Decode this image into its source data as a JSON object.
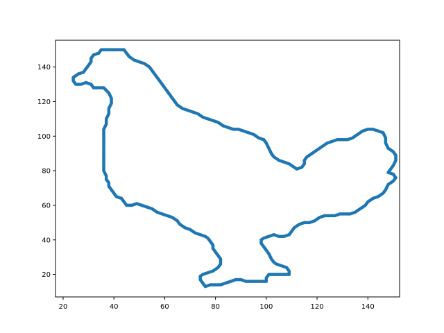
{
  "chart_data": {
    "type": "scatter",
    "title": "",
    "xlabel": "",
    "ylabel": "",
    "xlim": [
      17,
      152.5
    ],
    "ylim": [
      7,
      155.5
    ],
    "xticks": [
      20,
      40,
      60,
      80,
      100,
      120,
      140
    ],
    "yticks": [
      20,
      40,
      60,
      80,
      100,
      120,
      140
    ],
    "grid": false,
    "legend": "none",
    "marker_color": "#1f77b4",
    "series": [
      {
        "points": [
          [
            36,
            150
          ],
          [
            38,
            150
          ],
          [
            40,
            150
          ],
          [
            42,
            150
          ],
          [
            44,
            150
          ],
          [
            45,
            148
          ],
          [
            46,
            146
          ],
          [
            47,
            145
          ],
          [
            48,
            144
          ],
          [
            50,
            143
          ],
          [
            52,
            142
          ],
          [
            54,
            140
          ],
          [
            55,
            138
          ],
          [
            56,
            136
          ],
          [
            57,
            134
          ],
          [
            58,
            132
          ],
          [
            59,
            130
          ],
          [
            60,
            128
          ],
          [
            61,
            126
          ],
          [
            62,
            124
          ],
          [
            63,
            122
          ],
          [
            64,
            120
          ],
          [
            65,
            118
          ],
          [
            67,
            116
          ],
          [
            69,
            115
          ],
          [
            71,
            114
          ],
          [
            73,
            113
          ],
          [
            75,
            111
          ],
          [
            77,
            110
          ],
          [
            79,
            109
          ],
          [
            81,
            108
          ],
          [
            83,
            106
          ],
          [
            85,
            105
          ],
          [
            87,
            104
          ],
          [
            89,
            104
          ],
          [
            91,
            103
          ],
          [
            93,
            102
          ],
          [
            95,
            101
          ],
          [
            97,
            99
          ],
          [
            99,
            98
          ],
          [
            100,
            96
          ],
          [
            101,
            93
          ],
          [
            102,
            90
          ],
          [
            103,
            88
          ],
          [
            105,
            86
          ],
          [
            107,
            85
          ],
          [
            109,
            84
          ],
          [
            110,
            83
          ],
          [
            112,
            81
          ],
          [
            114,
            82
          ],
          [
            115,
            84
          ],
          [
            115,
            86
          ],
          [
            116,
            88
          ],
          [
            118,
            90
          ],
          [
            120,
            92
          ],
          [
            122,
            94
          ],
          [
            124,
            96
          ],
          [
            126,
            97
          ],
          [
            128,
            98
          ],
          [
            130,
            98
          ],
          [
            132,
            98
          ],
          [
            134,
            99
          ],
          [
            136,
            101
          ],
          [
            138,
            103
          ],
          [
            140,
            104
          ],
          [
            142,
            104
          ],
          [
            144,
            103
          ],
          [
            146,
            102
          ],
          [
            147,
            99
          ],
          [
            147,
            96
          ],
          [
            148,
            93
          ],
          [
            150,
            91
          ],
          [
            151,
            89
          ],
          [
            151,
            86
          ],
          [
            150,
            83
          ],
          [
            149,
            81
          ],
          [
            148,
            79
          ],
          [
            150,
            78
          ],
          [
            151,
            76
          ],
          [
            150,
            74
          ],
          [
            148,
            72
          ],
          [
            147,
            69
          ],
          [
            146,
            67
          ],
          [
            144,
            65
          ],
          [
            142,
            64
          ],
          [
            140,
            62
          ],
          [
            139,
            60
          ],
          [
            137,
            58
          ],
          [
            135,
            56
          ],
          [
            133,
            55
          ],
          [
            131,
            55
          ],
          [
            129,
            55
          ],
          [
            127,
            54
          ],
          [
            125,
            54
          ],
          [
            123,
            54
          ],
          [
            121,
            53
          ],
          [
            119,
            51
          ],
          [
            117,
            50
          ],
          [
            115,
            50
          ],
          [
            113,
            49
          ],
          [
            111,
            47
          ],
          [
            110,
            45
          ],
          [
            109,
            43
          ],
          [
            107,
            42
          ],
          [
            105,
            42
          ],
          [
            103,
            43
          ],
          [
            101,
            42
          ],
          [
            99,
            41
          ],
          [
            98,
            40
          ],
          [
            98,
            38
          ],
          [
            99,
            36
          ],
          [
            100,
            34
          ],
          [
            101,
            32
          ],
          [
            102,
            29
          ],
          [
            103,
            27
          ],
          [
            104,
            26
          ],
          [
            106,
            25
          ],
          [
            108,
            24
          ],
          [
            109,
            22
          ],
          [
            109,
            20
          ],
          [
            107,
            20
          ],
          [
            105,
            20
          ],
          [
            103,
            20
          ],
          [
            101,
            20
          ],
          [
            100,
            18
          ],
          [
            100,
            16
          ],
          [
            98,
            16
          ],
          [
            96,
            16
          ],
          [
            94,
            16
          ],
          [
            92,
            16
          ],
          [
            90,
            17
          ],
          [
            88,
            17
          ],
          [
            86,
            16
          ],
          [
            84,
            15
          ],
          [
            82,
            14
          ],
          [
            80,
            14
          ],
          [
            78,
            14
          ],
          [
            76,
            13
          ],
          [
            75,
            15
          ],
          [
            74,
            17
          ],
          [
            74,
            19
          ],
          [
            75,
            20
          ],
          [
            77,
            21
          ],
          [
            79,
            22
          ],
          [
            81,
            24
          ],
          [
            82,
            26
          ],
          [
            82,
            29
          ],
          [
            81,
            31
          ],
          [
            80,
            33
          ],
          [
            79,
            35
          ],
          [
            79,
            37
          ],
          [
            78,
            39
          ],
          [
            77,
            41
          ],
          [
            76,
            42
          ],
          [
            74,
            43
          ],
          [
            72,
            44
          ],
          [
            70,
            46
          ],
          [
            68,
            47
          ],
          [
            66,
            49
          ],
          [
            65,
            51
          ],
          [
            63,
            53
          ],
          [
            61,
            54
          ],
          [
            59,
            55
          ],
          [
            57,
            56
          ],
          [
            55,
            58
          ],
          [
            53,
            59
          ],
          [
            51,
            60
          ],
          [
            49,
            61
          ],
          [
            47,
            60
          ],
          [
            45,
            60
          ],
          [
            44,
            62
          ],
          [
            43,
            64
          ],
          [
            41,
            65
          ],
          [
            40,
            67
          ],
          [
            39,
            69
          ],
          [
            38,
            71
          ],
          [
            38,
            73
          ],
          [
            37,
            75
          ],
          [
            37,
            77
          ],
          [
            36,
            80
          ],
          [
            36,
            83
          ],
          [
            36,
            86
          ],
          [
            36,
            89
          ],
          [
            36,
            92
          ],
          [
            36,
            95
          ],
          [
            36,
            98
          ],
          [
            36,
            101
          ],
          [
            36,
            104
          ],
          [
            37,
            107
          ],
          [
            37,
            110
          ],
          [
            38,
            113
          ],
          [
            38,
            116
          ],
          [
            39,
            119
          ],
          [
            39,
            122
          ],
          [
            38,
            125
          ],
          [
            36,
            128
          ],
          [
            34,
            128
          ],
          [
            32,
            128
          ],
          [
            31,
            130
          ],
          [
            29,
            131
          ],
          [
            27,
            130
          ],
          [
            25,
            130
          ],
          [
            24,
            132
          ],
          [
            24,
            134
          ],
          [
            26,
            136
          ],
          [
            28,
            137
          ],
          [
            29,
            139
          ],
          [
            30,
            141
          ],
          [
            31,
            143
          ],
          [
            31,
            145
          ],
          [
            32,
            147
          ],
          [
            34,
            148
          ],
          [
            35,
            150
          ]
        ]
      }
    ]
  }
}
